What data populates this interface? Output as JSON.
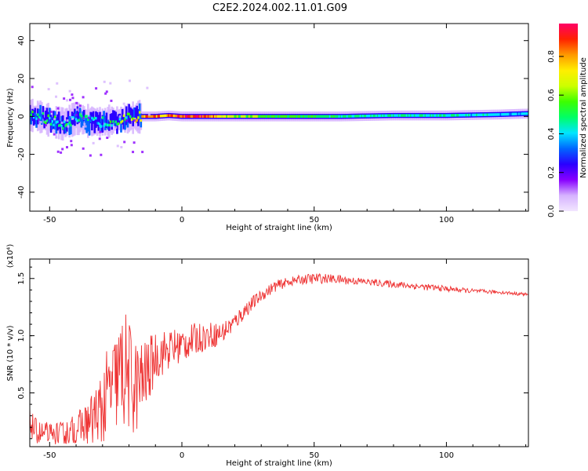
{
  "title": "C2E2.2024.002.11.01.G09",
  "chart_data": [
    {
      "type": "heatmap",
      "title": "",
      "xlabel": "Height of straight line (km)",
      "ylabel": "Frequency (Hz)",
      "xlim": [
        -57.5,
        131
      ],
      "ylim": [
        -50,
        49
      ],
      "xticks": [
        -50,
        0,
        50,
        100
      ],
      "yticks": [
        -40,
        -20,
        0,
        20,
        40
      ],
      "colorbar": {
        "label": "Normalized spectral amplitude",
        "range": [
          0.0,
          0.97
        ],
        "ticks": [
          0.0,
          0.2,
          0.4,
          0.6,
          0.8
        ],
        "tick_labels": [
          "0.0",
          "0.2",
          "0.4",
          "0.6",
          "0.8"
        ],
        "colors": [
          "#f2e6ff",
          "#d6b3ff",
          "#8800ff",
          "#2a00ff",
          "#0066ff",
          "#00e6ff",
          "#00ff66",
          "#3cff00",
          "#ccff00",
          "#ffee00",
          "#ff9900",
          "#ff2200",
          "#ff0066"
        ]
      },
      "ridge": [
        {
          "x": -55,
          "y": 0.5,
          "amp": 0.45
        },
        {
          "x": -50,
          "y": -2.0,
          "amp": 0.5
        },
        {
          "x": -45,
          "y": -4.0,
          "amp": 0.45
        },
        {
          "x": -40,
          "y": -1.0,
          "amp": 0.5
        },
        {
          "x": -35,
          "y": -2.5,
          "amp": 0.45
        },
        {
          "x": -30,
          "y": -3.0,
          "amp": 0.45
        },
        {
          "x": -25,
          "y": -2.0,
          "amp": 0.5
        },
        {
          "x": -20,
          "y": -1.0,
          "amp": 0.55
        },
        {
          "x": -15,
          "y": 0.0,
          "amp": 0.85
        },
        {
          "x": -10,
          "y": 0.0,
          "amp": 0.85
        },
        {
          "x": -5,
          "y": 0.5,
          "amp": 0.8
        },
        {
          "x": 0,
          "y": 0.0,
          "amp": 0.9
        },
        {
          "x": 10,
          "y": 0.0,
          "amp": 0.85
        },
        {
          "x": 20,
          "y": 0.0,
          "amp": 0.6
        },
        {
          "x": 40,
          "y": 0.0,
          "amp": 0.55
        },
        {
          "x": 60,
          "y": 0.0,
          "amp": 0.5
        },
        {
          "x": 80,
          "y": 0.5,
          "amp": 0.45
        },
        {
          "x": 100,
          "y": 0.5,
          "amp": 0.45
        },
        {
          "x": 120,
          "y": 1.0,
          "amp": 0.4
        },
        {
          "x": 131,
          "y": 1.5,
          "amp": 0.4
        }
      ]
    },
    {
      "type": "line",
      "title": "",
      "xlabel": "Height of straight line (km)",
      "ylabel": "SNR (10 * v/v)",
      "y_multiplier": "(x10⁴)",
      "xlim": [
        -57.5,
        131
      ],
      "ylim": [
        0.03,
        1.67
      ],
      "xticks": [
        -50,
        0,
        50,
        100
      ],
      "yticks": [
        0.5,
        1.0,
        1.5
      ],
      "ytick_labels": [
        "0.5",
        "1.0",
        "1.5"
      ],
      "series": [
        {
          "color": "#ee3333",
          "x": [
            -57.5,
            -55,
            -50,
            -45,
            -40,
            -35,
            -30,
            -28,
            -25,
            -22,
            -20,
            -18,
            -15,
            -12,
            -10,
            -5,
            0,
            5,
            10,
            15,
            20,
            25,
            30,
            35,
            40,
            45,
            50,
            55,
            60,
            65,
            70,
            80,
            90,
            100,
            110,
            120,
            131
          ],
          "y": [
            0.25,
            0.15,
            0.12,
            0.13,
            0.18,
            0.25,
            0.35,
            0.48,
            0.6,
            0.7,
            0.65,
            0.55,
            0.6,
            0.72,
            0.82,
            0.88,
            0.92,
            0.97,
            1.0,
            1.02,
            1.12,
            1.25,
            1.35,
            1.43,
            1.47,
            1.49,
            1.5,
            1.5,
            1.49,
            1.48,
            1.47,
            1.45,
            1.43,
            1.41,
            1.39,
            1.38,
            1.36
          ],
          "noise_amplitude": [
            0.12,
            0.12,
            0.12,
            0.12,
            0.14,
            0.2,
            0.4,
            0.42,
            0.45,
            0.55,
            0.5,
            0.45,
            0.35,
            0.28,
            0.22,
            0.18,
            0.16,
            0.14,
            0.12,
            0.1,
            0.08,
            0.07,
            0.05,
            0.05,
            0.04,
            0.04,
            0.05,
            0.04,
            0.04,
            0.035,
            0.03,
            0.03,
            0.03,
            0.025,
            0.02,
            0.015,
            0.015
          ]
        }
      ]
    }
  ]
}
